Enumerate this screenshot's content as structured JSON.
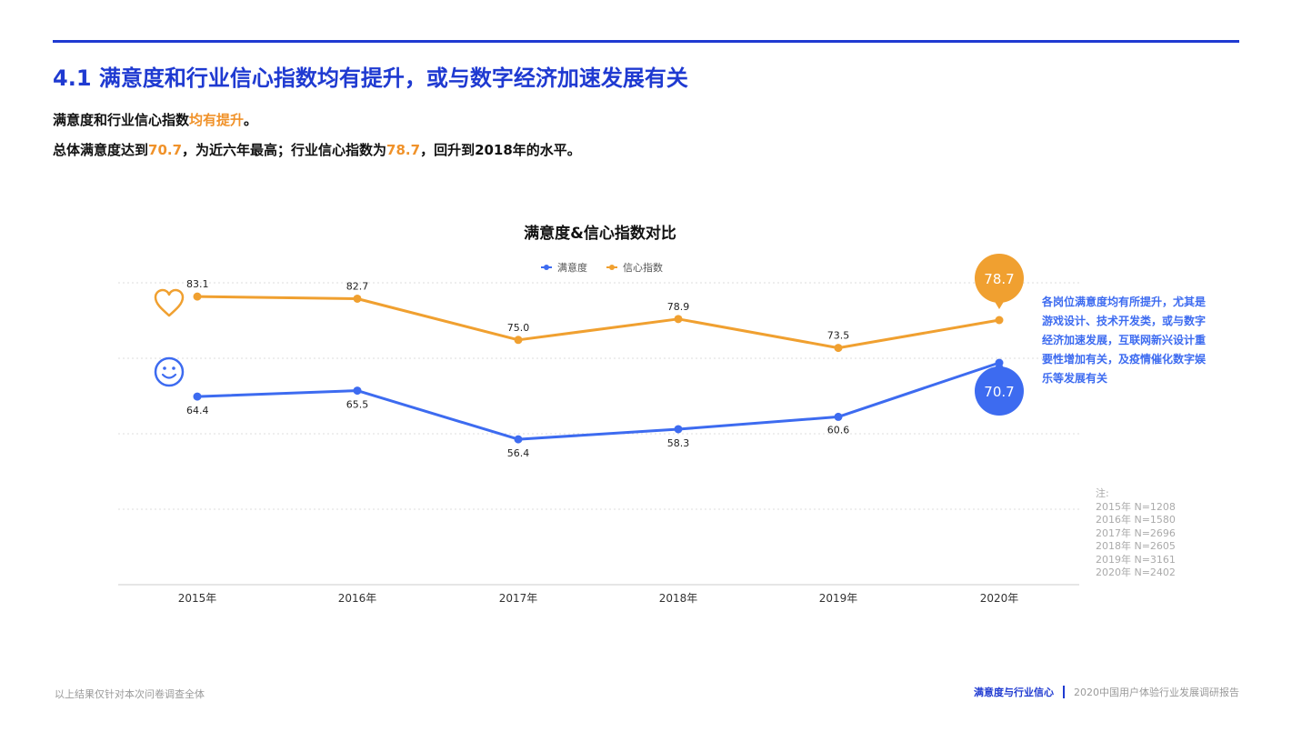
{
  "header": {
    "title": "4.1 满意度和行业信心指数均有提升，或与数字经济加速发展有关",
    "lead1_prefix": "满意度和行业信心指数",
    "lead1_highlight": "均有提升",
    "lead1_suffix": "。",
    "lead2_part1": "总体满意度达到",
    "lead2_value1": "70.7",
    "lead2_part2": "，为近六年最高；行业信心指数为",
    "lead2_value2": "78.7",
    "lead2_part3": "，回升到2018年的水平。"
  },
  "chart_data": {
    "type": "line",
    "title": "满意度&信心指数对比",
    "categories": [
      "2015年",
      "2016年",
      "2017年",
      "2018年",
      "2019年",
      "2020年"
    ],
    "series": [
      {
        "name": "满意度",
        "values": [
          64.4,
          65.5,
          56.4,
          58.3,
          60.6,
          70.7
        ],
        "color": "#3d6bf0",
        "icon": "smiley-face-icon"
      },
      {
        "name": "信心指数",
        "values": [
          83.1,
          82.7,
          75.0,
          78.9,
          73.5,
          78.7
        ],
        "color": "#f0a030",
        "icon": "heart-icon"
      }
    ],
    "legend_position": "top-center",
    "grid": true,
    "highlight": {
      "category": "2020年",
      "satisfaction_label": "70.7",
      "confidence_label": "78.7"
    }
  },
  "side_note": "各岗位满意度均有所提升，尤其是游戏设计、技术开发类，或与数字经济加速发展，互联网新兴设计重要性增加有关，及疫情催化数字娱乐等发展有关",
  "notes": {
    "title": "注:",
    "lines": [
      "2015年 N=1208",
      "2016年 N=1580",
      "2017年 N=2696",
      "2018年 N=2605",
      "2019年 N=3161",
      "2020年 N=2402"
    ]
  },
  "footer": {
    "disclaimer": "以上结果仅针对本次问卷调查全体",
    "section": "满意度与行业信心",
    "report": "2020中国用户体验行业发展调研报告"
  },
  "colors": {
    "brand": "#1f3ad1",
    "accent": "#f0922a",
    "satisfaction": "#3d6bf0",
    "confidence": "#f0a030"
  }
}
